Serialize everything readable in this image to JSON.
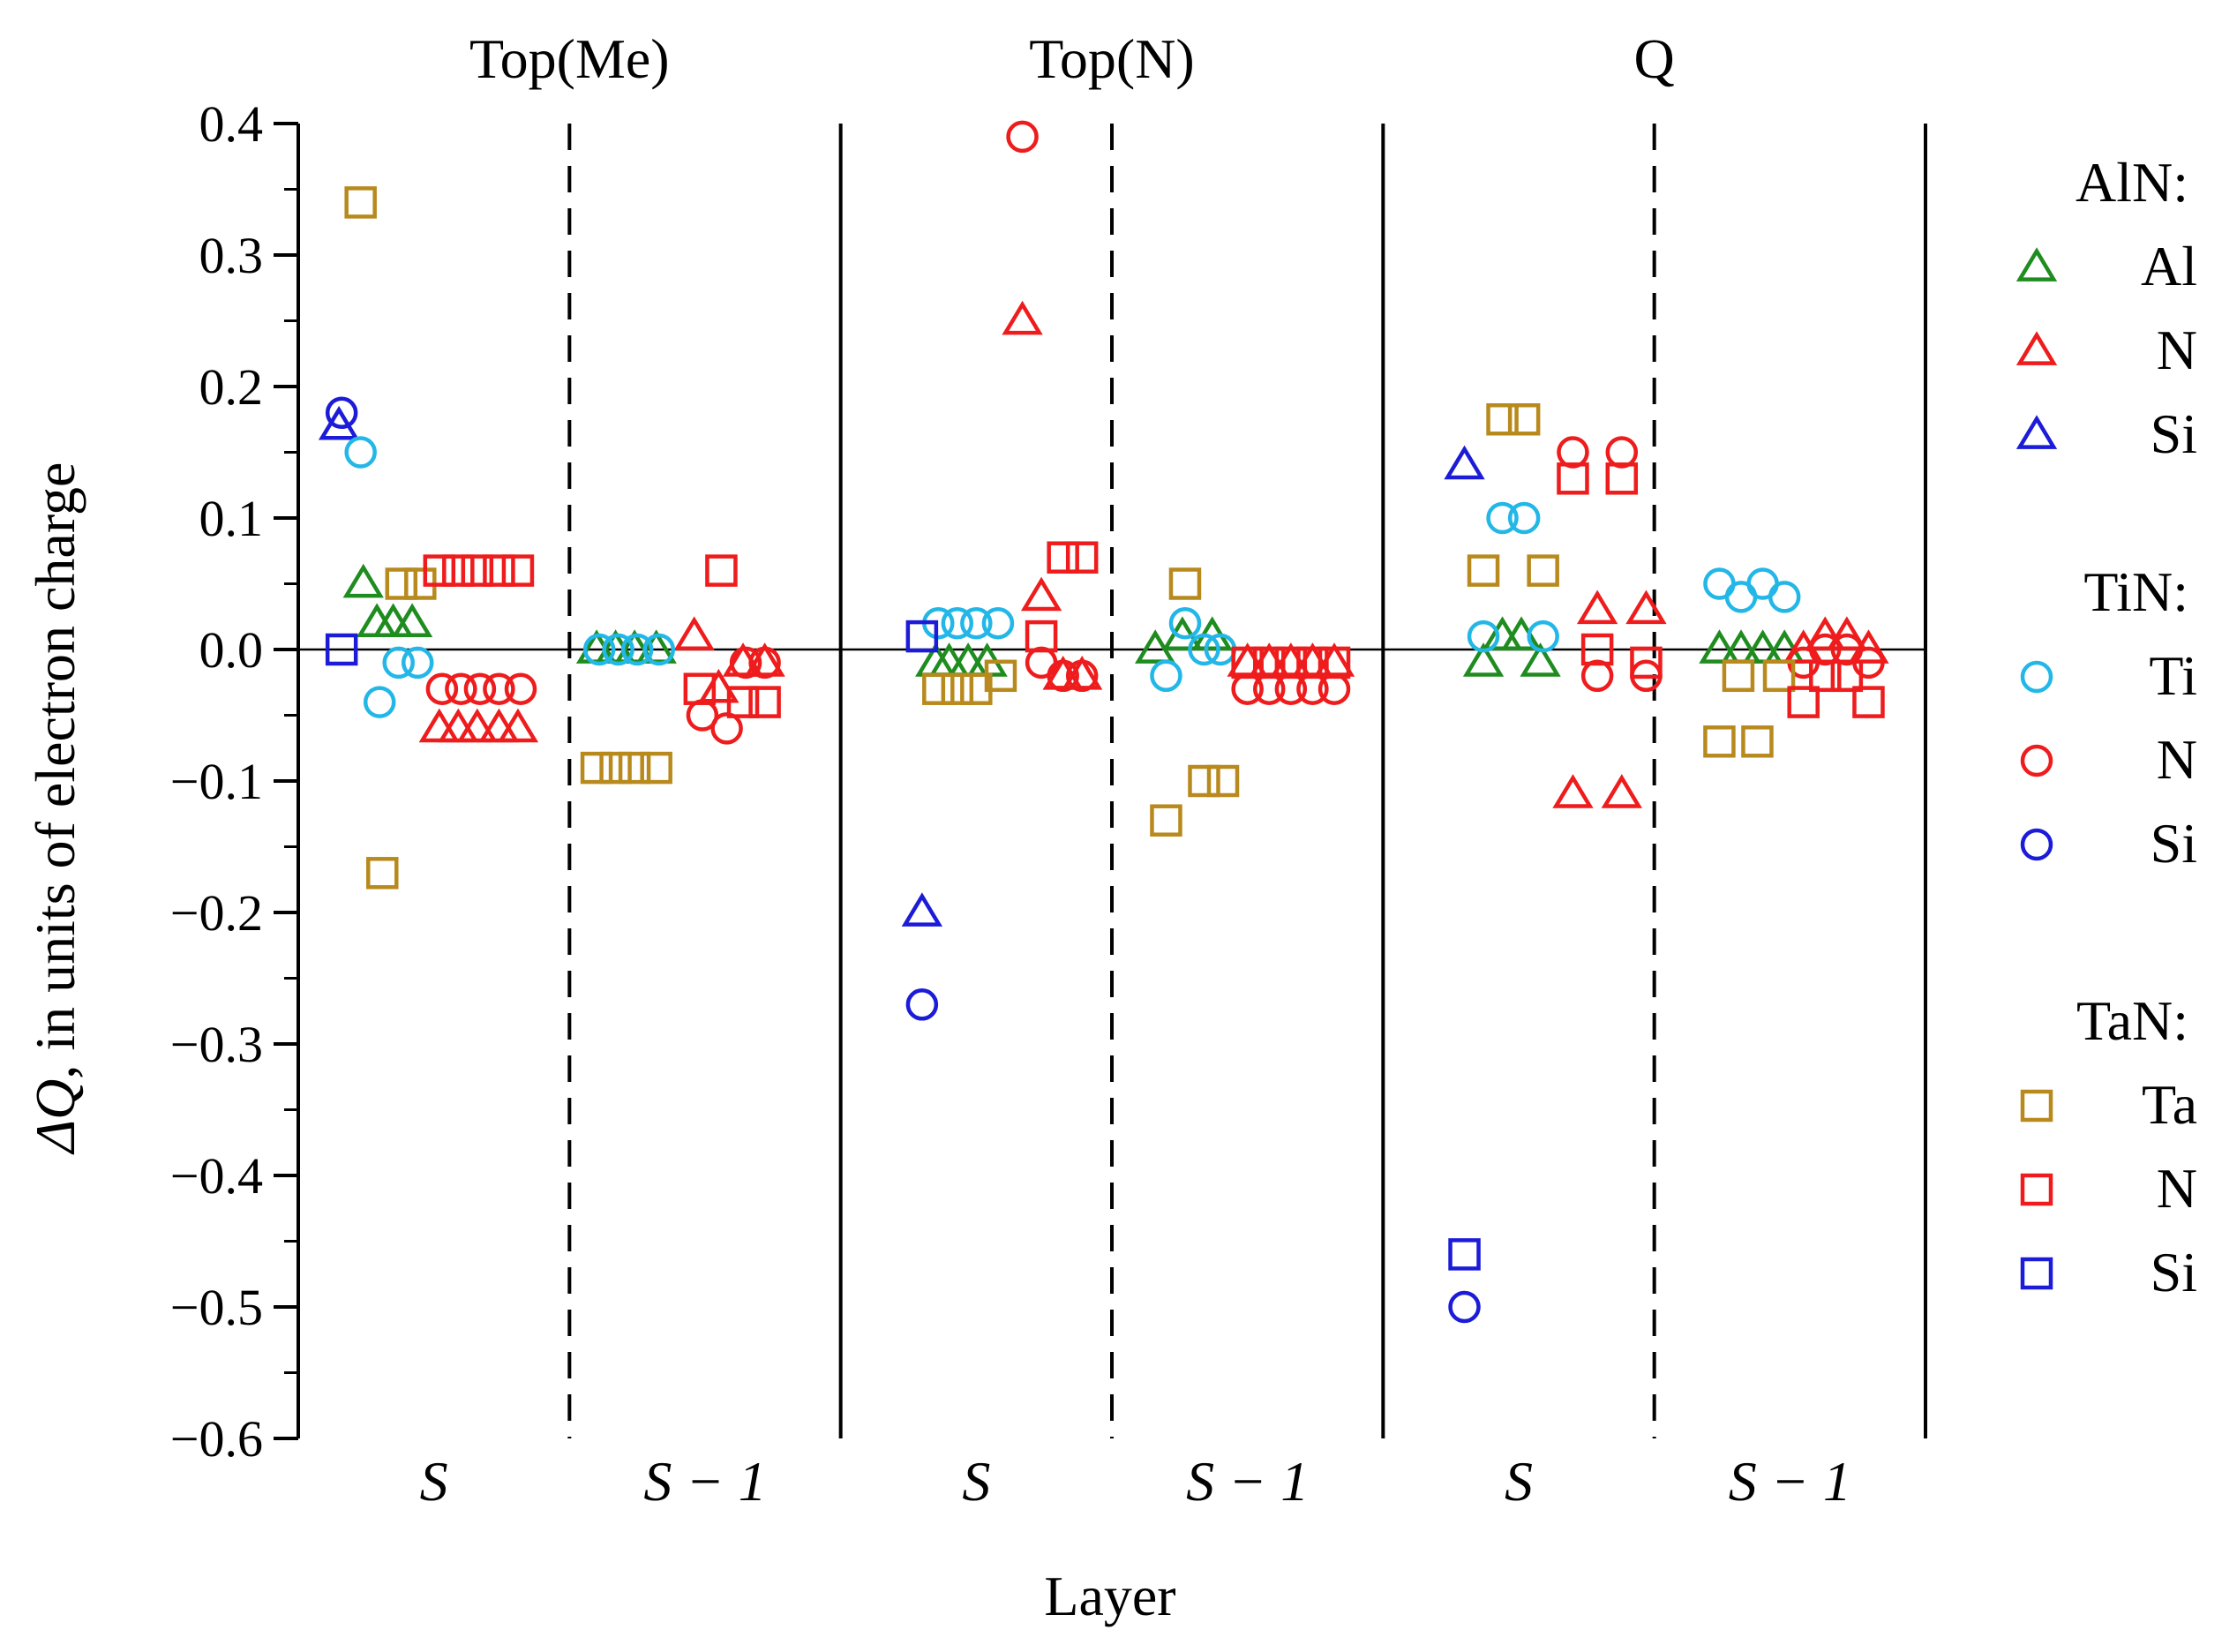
{
  "chart_data": {
    "type": "scatter",
    "ylabel_parts": [
      "ΔQ",
      ", in units of electron charge"
    ],
    "xlabel": "Layer",
    "ylim": [
      -0.6,
      0.4
    ],
    "y_ticks": [
      {
        "value": 0.4,
        "label": "0.4"
      },
      {
        "value": 0.3,
        "label": "0.3"
      },
      {
        "value": 0.2,
        "label": "0.2"
      },
      {
        "value": 0.1,
        "label": "0.1"
      },
      {
        "value": 0.0,
        "label": "0.0"
      },
      {
        "value": -0.1,
        "label": "−0.1"
      },
      {
        "value": -0.2,
        "label": "−0.2"
      },
      {
        "value": -0.3,
        "label": "−0.3"
      },
      {
        "value": -0.4,
        "label": "−0.4"
      },
      {
        "value": -0.5,
        "label": "−0.5"
      },
      {
        "value": -0.6,
        "label": "−0.6"
      }
    ],
    "panels": [
      {
        "title": "Top(Me)",
        "layers": [
          {
            "label": "S"
          },
          {
            "label": "S − 1"
          }
        ]
      },
      {
        "title": "Top(N)",
        "layers": [
          {
            "label": "S"
          },
          {
            "label": "S − 1"
          }
        ]
      },
      {
        "title": "Q",
        "layers": [
          {
            "label": "S"
          },
          {
            "label": "S − 1"
          }
        ]
      }
    ],
    "legend": {
      "groups": [
        {
          "heading": "AlN:",
          "marker": "triangle",
          "entries": [
            {
              "label": "Al",
              "color": "#1e8c1e"
            },
            {
              "label": "N",
              "color": "#ee1c1c"
            },
            {
              "label": "Si",
              "color": "#1c1cd8"
            }
          ]
        },
        {
          "heading": "TiN:",
          "marker": "circle",
          "entries": [
            {
              "label": "Ti",
              "color": "#23b7e8"
            },
            {
              "label": "N",
              "color": "#ee1c1c"
            },
            {
              "label": "Si",
              "color": "#1c1cd8"
            }
          ]
        },
        {
          "heading": "TaN:",
          "marker": "square",
          "entries": [
            {
              "label": "Ta",
              "color": "#b88a1e"
            },
            {
              "label": "N",
              "color": "#ee1c1c"
            },
            {
              "label": "Si",
              "color": "#1c1cd8"
            }
          ]
        }
      ]
    },
    "colors": {
      "Al": "#1e8c1e",
      "Ti": "#23b7e8",
      "Ta": "#b88a1e",
      "N": "#ee1c1c",
      "Si": "#1c1cd8"
    },
    "series": [
      {
        "name": "AlN Al",
        "marker": "triangle",
        "color_key": "Al",
        "points": [
          {
            "x": 0.24,
            "y": 0.05
          },
          {
            "x": 0.29,
            "y": 0.02
          },
          {
            "x": 0.35,
            "y": 0.02
          },
          {
            "x": 0.42,
            "y": 0.02
          },
          {
            "x": 1.1,
            "y": 0.0
          },
          {
            "x": 1.17,
            "y": 0.0
          },
          {
            "x": 1.24,
            "y": 0.0
          },
          {
            "x": 1.32,
            "y": 0.0
          },
          {
            "x": 2.35,
            "y": -0.01
          },
          {
            "x": 2.4,
            "y": -0.01
          },
          {
            "x": 2.47,
            "y": -0.01
          },
          {
            "x": 2.54,
            "y": -0.01
          },
          {
            "x": 3.16,
            "y": 0.0
          },
          {
            "x": 3.26,
            "y": 0.01
          },
          {
            "x": 3.37,
            "y": 0.01
          },
          {
            "x": 4.37,
            "y": -0.01
          },
          {
            "x": 4.44,
            "y": 0.01
          },
          {
            "x": 4.51,
            "y": 0.01
          },
          {
            "x": 4.58,
            "y": -0.01
          },
          {
            "x": 5.24,
            "y": 0.0
          },
          {
            "x": 5.32,
            "y": 0.0
          },
          {
            "x": 5.4,
            "y": 0.0
          },
          {
            "x": 5.48,
            "y": 0.0
          }
        ]
      },
      {
        "name": "AlN N",
        "marker": "triangle",
        "color_key": "N",
        "points": [
          {
            "x": 0.52,
            "y": -0.06
          },
          {
            "x": 0.59,
            "y": -0.06
          },
          {
            "x": 0.66,
            "y": -0.06
          },
          {
            "x": 0.74,
            "y": -0.06
          },
          {
            "x": 0.81,
            "y": -0.06
          },
          {
            "x": 1.46,
            "y": 0.01
          },
          {
            "x": 1.55,
            "y": -0.03
          },
          {
            "x": 1.64,
            "y": -0.01
          },
          {
            "x": 1.72,
            "y": -0.01
          },
          {
            "x": 2.67,
            "y": 0.25
          },
          {
            "x": 2.74,
            "y": 0.04
          },
          {
            "x": 2.82,
            "y": -0.02
          },
          {
            "x": 2.89,
            "y": -0.02
          },
          {
            "x": 3.5,
            "y": -0.01
          },
          {
            "x": 3.58,
            "y": -0.01
          },
          {
            "x": 3.66,
            "y": -0.01
          },
          {
            "x": 3.74,
            "y": -0.01
          },
          {
            "x": 3.82,
            "y": -0.01
          },
          {
            "x": 4.7,
            "y": -0.11
          },
          {
            "x": 4.79,
            "y": 0.03
          },
          {
            "x": 4.88,
            "y": -0.11
          },
          {
            "x": 4.97,
            "y": 0.03
          },
          {
            "x": 5.55,
            "y": 0.0
          },
          {
            "x": 5.63,
            "y": 0.01
          },
          {
            "x": 5.71,
            "y": 0.01
          },
          {
            "x": 5.79,
            "y": 0.0
          }
        ]
      },
      {
        "name": "AlN Si",
        "marker": "triangle",
        "color_key": "Si",
        "points": [
          {
            "x": 0.15,
            "y": 0.17
          },
          {
            "x": 2.3,
            "y": -0.2
          },
          {
            "x": 4.3,
            "y": 0.14
          }
        ]
      },
      {
        "name": "TiN Ti",
        "marker": "circle",
        "color_key": "Ti",
        "points": [
          {
            "x": 0.23,
            "y": 0.15
          },
          {
            "x": 0.3,
            "y": -0.04
          },
          {
            "x": 0.37,
            "y": -0.01
          },
          {
            "x": 0.44,
            "y": -0.01
          },
          {
            "x": 1.11,
            "y": 0.0
          },
          {
            "x": 1.18,
            "y": 0.0
          },
          {
            "x": 1.25,
            "y": 0.0
          },
          {
            "x": 1.33,
            "y": 0.0
          },
          {
            "x": 2.36,
            "y": 0.02
          },
          {
            "x": 2.43,
            "y": 0.02
          },
          {
            "x": 2.5,
            "y": 0.02
          },
          {
            "x": 2.58,
            "y": 0.02
          },
          {
            "x": 3.2,
            "y": -0.02
          },
          {
            "x": 3.27,
            "y": 0.02
          },
          {
            "x": 3.34,
            "y": 0.0
          },
          {
            "x": 3.4,
            "y": 0.0
          },
          {
            "x": 4.37,
            "y": 0.01
          },
          {
            "x": 4.44,
            "y": 0.1
          },
          {
            "x": 4.52,
            "y": 0.1
          },
          {
            "x": 4.59,
            "y": 0.01
          },
          {
            "x": 5.24,
            "y": 0.05
          },
          {
            "x": 5.32,
            "y": 0.04
          },
          {
            "x": 5.4,
            "y": 0.05
          },
          {
            "x": 5.48,
            "y": 0.04
          }
        ]
      },
      {
        "name": "TiN N",
        "marker": "circle",
        "color_key": "N",
        "points": [
          {
            "x": 0.53,
            "y": -0.03
          },
          {
            "x": 0.6,
            "y": -0.03
          },
          {
            "x": 0.67,
            "y": -0.03
          },
          {
            "x": 0.74,
            "y": -0.03
          },
          {
            "x": 0.82,
            "y": -0.03
          },
          {
            "x": 1.49,
            "y": -0.05
          },
          {
            "x": 1.58,
            "y": -0.06
          },
          {
            "x": 1.65,
            "y": -0.01
          },
          {
            "x": 1.72,
            "y": -0.01
          },
          {
            "x": 2.67,
            "y": 0.39
          },
          {
            "x": 2.74,
            "y": -0.01
          },
          {
            "x": 2.82,
            "y": -0.02
          },
          {
            "x": 2.89,
            "y": -0.02
          },
          {
            "x": 3.5,
            "y": -0.03
          },
          {
            "x": 3.58,
            "y": -0.03
          },
          {
            "x": 3.66,
            "y": -0.03
          },
          {
            "x": 3.74,
            "y": -0.03
          },
          {
            "x": 3.82,
            "y": -0.03
          },
          {
            "x": 4.7,
            "y": 0.15
          },
          {
            "x": 4.79,
            "y": -0.02
          },
          {
            "x": 4.88,
            "y": 0.15
          },
          {
            "x": 4.97,
            "y": -0.02
          },
          {
            "x": 5.55,
            "y": -0.01
          },
          {
            "x": 5.63,
            "y": 0.0
          },
          {
            "x": 5.71,
            "y": 0.0
          },
          {
            "x": 5.79,
            "y": -0.01
          }
        ]
      },
      {
        "name": "TiN Si",
        "marker": "circle",
        "color_key": "Si",
        "points": [
          {
            "x": 0.16,
            "y": 0.18
          },
          {
            "x": 2.3,
            "y": -0.27
          },
          {
            "x": 4.3,
            "y": -0.5
          }
        ]
      },
      {
        "name": "TaN Ta",
        "marker": "square",
        "color_key": "Ta",
        "points": [
          {
            "x": 0.23,
            "y": 0.34
          },
          {
            "x": 0.31,
            "y": -0.17
          },
          {
            "x": 0.38,
            "y": 0.05
          },
          {
            "x": 0.45,
            "y": 0.05
          },
          {
            "x": 1.1,
            "y": -0.09
          },
          {
            "x": 1.17,
            "y": -0.09
          },
          {
            "x": 1.24,
            "y": -0.09
          },
          {
            "x": 1.32,
            "y": -0.09
          },
          {
            "x": 2.36,
            "y": -0.03
          },
          {
            "x": 2.43,
            "y": -0.03
          },
          {
            "x": 2.5,
            "y": -0.03
          },
          {
            "x": 2.59,
            "y": -0.02
          },
          {
            "x": 3.2,
            "y": -0.13
          },
          {
            "x": 3.27,
            "y": 0.05
          },
          {
            "x": 3.34,
            "y": -0.1
          },
          {
            "x": 3.41,
            "y": -0.1
          },
          {
            "x": 4.37,
            "y": 0.06
          },
          {
            "x": 4.44,
            "y": 0.175
          },
          {
            "x": 4.52,
            "y": 0.175
          },
          {
            "x": 4.59,
            "y": 0.06
          },
          {
            "x": 5.24,
            "y": -0.07
          },
          {
            "x": 5.31,
            "y": -0.02
          },
          {
            "x": 5.38,
            "y": -0.07
          },
          {
            "x": 5.46,
            "y": -0.02
          }
        ]
      },
      {
        "name": "TaN N",
        "marker": "square",
        "color_key": "N",
        "points": [
          {
            "x": 0.52,
            "y": 0.06
          },
          {
            "x": 0.59,
            "y": 0.06
          },
          {
            "x": 0.66,
            "y": 0.06
          },
          {
            "x": 0.74,
            "y": 0.06
          },
          {
            "x": 0.81,
            "y": 0.06
          },
          {
            "x": 1.48,
            "y": -0.03
          },
          {
            "x": 1.56,
            "y": 0.06
          },
          {
            "x": 1.64,
            "y": -0.04
          },
          {
            "x": 1.72,
            "y": -0.04
          },
          {
            "x": 2.74,
            "y": 0.01
          },
          {
            "x": 2.82,
            "y": 0.07
          },
          {
            "x": 2.89,
            "y": 0.07
          },
          {
            "x": 3.5,
            "y": -0.01
          },
          {
            "x": 3.58,
            "y": -0.01
          },
          {
            "x": 3.66,
            "y": -0.01
          },
          {
            "x": 3.74,
            "y": -0.01
          },
          {
            "x": 3.82,
            "y": -0.01
          },
          {
            "x": 4.7,
            "y": 0.13
          },
          {
            "x": 4.79,
            "y": 0.0
          },
          {
            "x": 4.88,
            "y": 0.13
          },
          {
            "x": 4.97,
            "y": -0.01
          },
          {
            "x": 5.55,
            "y": -0.04
          },
          {
            "x": 5.63,
            "y": -0.02
          },
          {
            "x": 5.71,
            "y": -0.02
          },
          {
            "x": 5.79,
            "y": -0.04
          }
        ]
      },
      {
        "name": "TaN Si",
        "marker": "square",
        "color_key": "Si",
        "points": [
          {
            "x": 0.16,
            "y": 0.0
          },
          {
            "x": 2.3,
            "y": 0.01
          },
          {
            "x": 4.3,
            "y": -0.46
          }
        ]
      }
    ]
  }
}
